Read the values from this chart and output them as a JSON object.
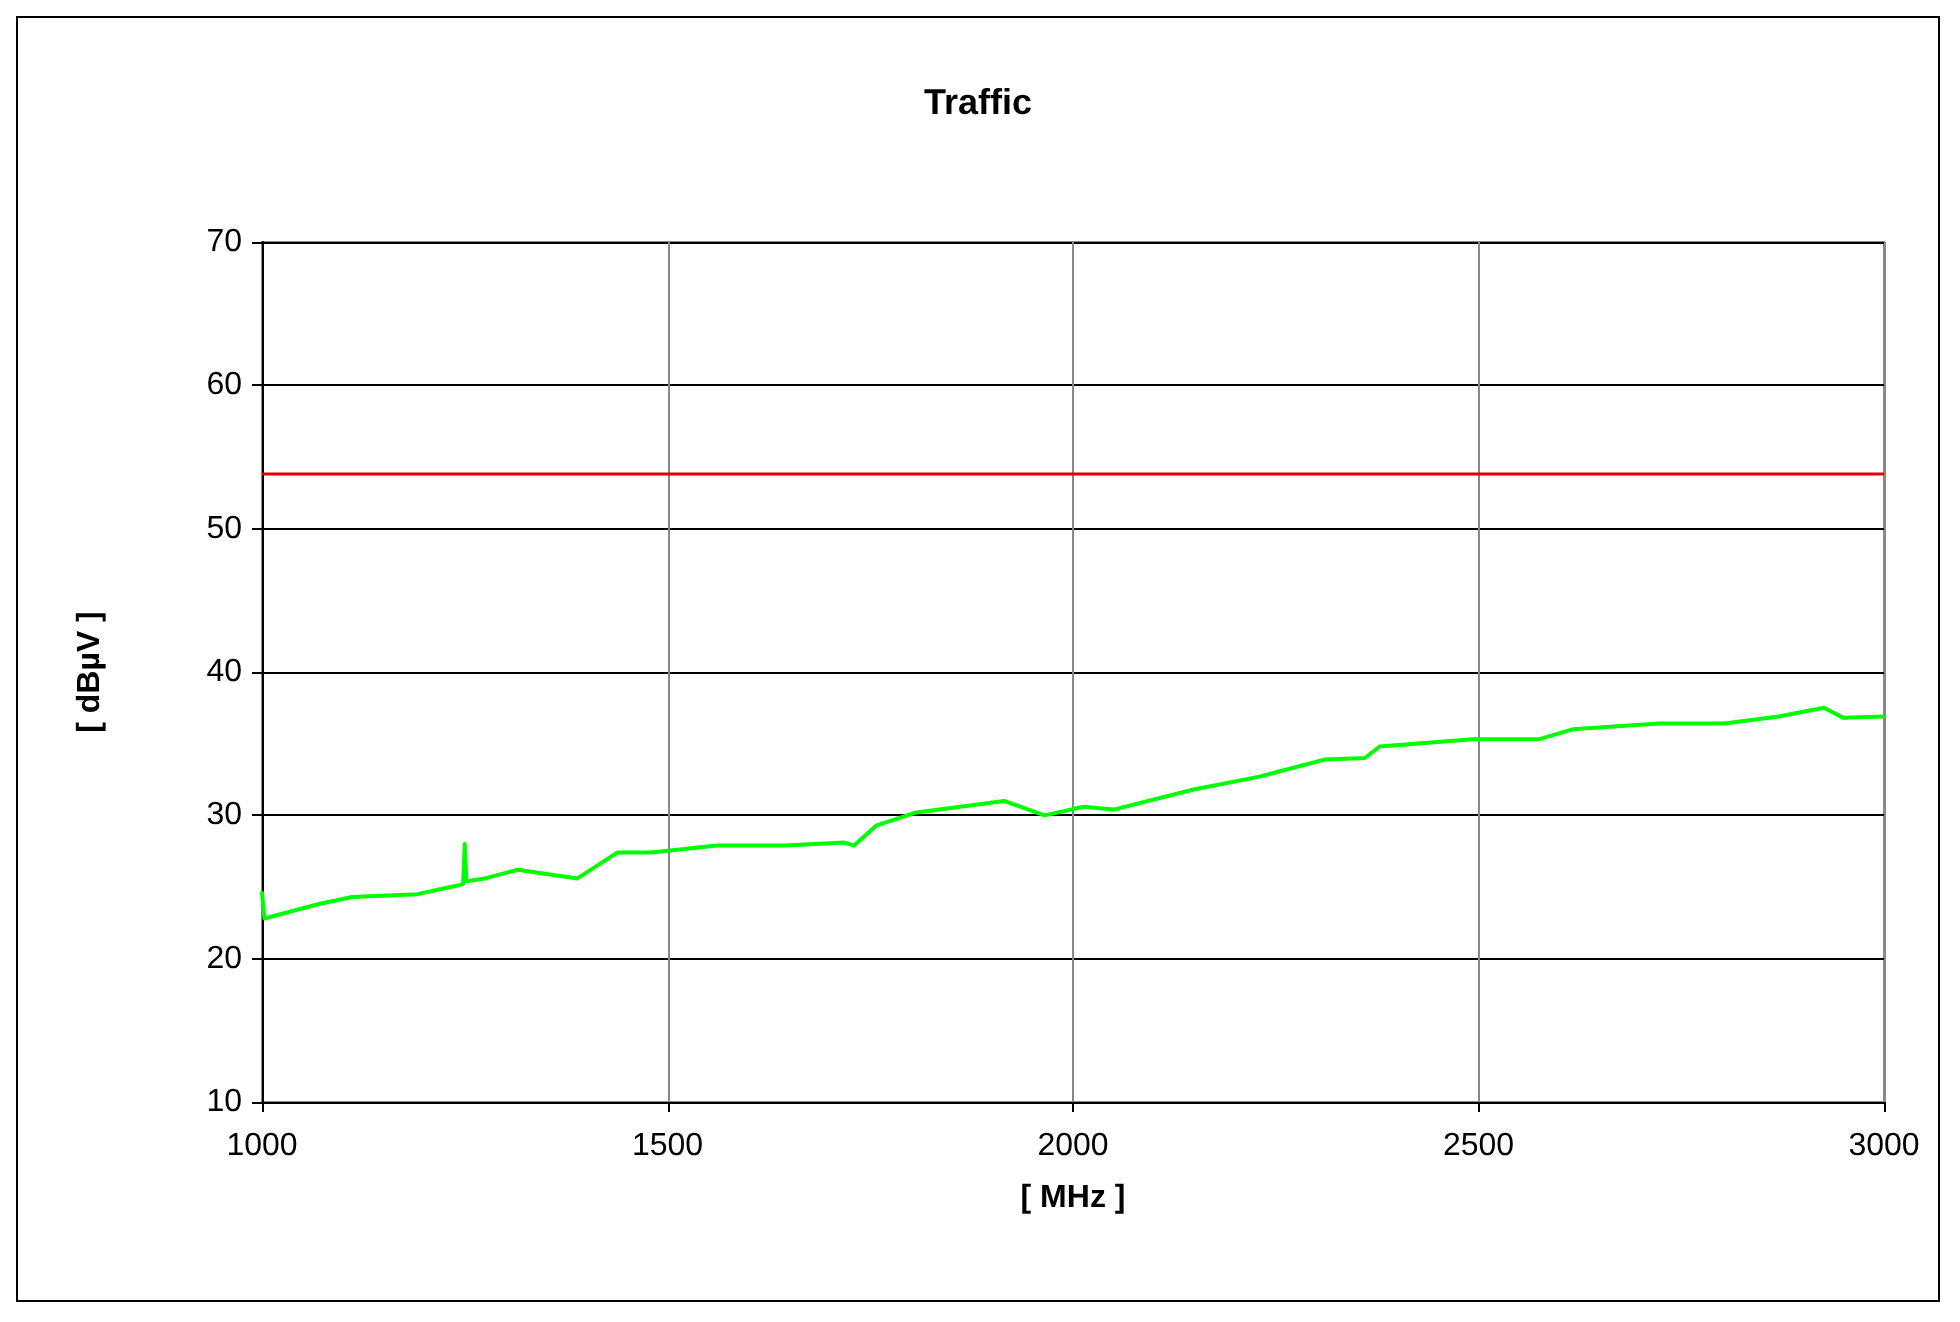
{
  "chart_data": {
    "type": "line",
    "title": "Traffic",
    "xlabel": "[ MHz ]",
    "ylabel": "[ dBµV ]",
    "xlim": [
      1000,
      3000
    ],
    "xticks": [
      1000,
      1500,
      2000,
      2500,
      3000
    ],
    "ylim": [
      10,
      70
    ],
    "yticks": [
      10,
      20,
      30,
      40,
      50,
      60,
      70
    ],
    "grid": true,
    "marker": "none",
    "line_style": "solid",
    "series": [
      {
        "color": "#00ff00",
        "x": [
          1000,
          1003,
          1069,
          1111,
          1192,
          1241,
          1248,
          1250,
          1252,
          1275,
          1315,
          1389,
          1438,
          1480,
          1561,
          1644,
          1718,
          1730,
          1758,
          1807,
          1915,
          1965,
          2013,
          2050,
          2149,
          2230,
          2311,
          2360,
          2378,
          2493,
          2574,
          2616,
          2722,
          2803,
          2870,
          2926,
          2950,
          3000
        ],
        "values": [
          24.6,
          22.8,
          23.8,
          24.3,
          24.5,
          25.1,
          25.2,
          28.0,
          25.4,
          25.6,
          26.2,
          25.6,
          27.4,
          27.4,
          27.9,
          27.9,
          28.1,
          27.9,
          29.3,
          30.2,
          31.0,
          30.0,
          30.6,
          30.4,
          31.8,
          32.7,
          33.9,
          34.0,
          34.8,
          35.3,
          35.3,
          36.0,
          36.4,
          36.4,
          36.9,
          37.5,
          36.8,
          36.9
        ]
      }
    ],
    "ref_lines": [
      {
        "axis": "y",
        "value": 53.8,
        "color": "#e00000",
        "line_style": "solid"
      }
    ]
  }
}
